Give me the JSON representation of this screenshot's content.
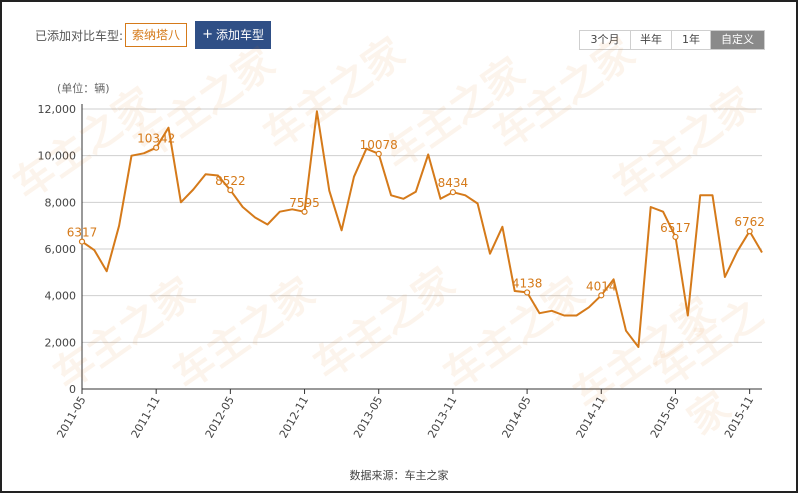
{
  "compare": {
    "label": "已添加对比车型:",
    "selected_model": "索纳塔八",
    "add_button": "添加车型"
  },
  "range_tabs": [
    {
      "label": "3个月",
      "active": false
    },
    {
      "label": "半年",
      "active": false
    },
    {
      "label": "1年",
      "active": false
    },
    {
      "label": "自定义",
      "active": true
    }
  ],
  "unit_label": "(单位：辆)",
  "source": "数据来源：车主之家",
  "watermark": "车主之家",
  "colors": {
    "line": "#d57a1a",
    "grid": "#cfcfcf",
    "axis": "#333333"
  },
  "chart_data": {
    "type": "line",
    "x": [
      "2011-05",
      "2011-06",
      "2011-07",
      "2011-08",
      "2011-09",
      "2011-10",
      "2011-11",
      "2011-12",
      "2012-01",
      "2012-02",
      "2012-03",
      "2012-04",
      "2012-05",
      "2012-06",
      "2012-07",
      "2012-08",
      "2012-09",
      "2012-10",
      "2012-11",
      "2012-12",
      "2013-01",
      "2013-02",
      "2013-03",
      "2013-04",
      "2013-05",
      "2013-06",
      "2013-07",
      "2013-08",
      "2013-09",
      "2013-10",
      "2013-11",
      "2013-12",
      "2014-01",
      "2014-02",
      "2014-03",
      "2014-04",
      "2014-05",
      "2014-06",
      "2014-07",
      "2014-08",
      "2014-09",
      "2014-10",
      "2014-11",
      "2014-12",
      "2015-01",
      "2015-02",
      "2015-03",
      "2015-04",
      "2015-05",
      "2015-06",
      "2015-07",
      "2015-08",
      "2015-09",
      "2015-10",
      "2015-11",
      "2015-12"
    ],
    "values": [
      6317,
      5950,
      5050,
      7000,
      10000,
      10100,
      10342,
      11200,
      8000,
      8550,
      9200,
      9150,
      8522,
      7800,
      7350,
      7050,
      7600,
      7700,
      7595,
      11900,
      8500,
      6800,
      9100,
      10300,
      10078,
      8300,
      8150,
      8450,
      10050,
      8150,
      8434,
      8300,
      7950,
      5800,
      6950,
      4200,
      4138,
      3250,
      3350,
      3150,
      3150,
      3500,
      4014,
      4700,
      2500,
      1800,
      7800,
      7600,
      6517,
      3150,
      8300,
      8300,
      4800,
      5900,
      6762,
      5850
    ],
    "series": [
      {
        "values_ref": "values"
      }
    ],
    "point_labels": [
      {
        "x": "2011-05",
        "value": 6317,
        "label": "6317"
      },
      {
        "x": "2011-11",
        "value": 10342,
        "label": "10342"
      },
      {
        "x": "2012-05",
        "value": 8522,
        "label": "8522"
      },
      {
        "x": "2012-11",
        "value": 7595,
        "label": "7595"
      },
      {
        "x": "2013-05",
        "value": 10078,
        "label": "10078"
      },
      {
        "x": "2013-11",
        "value": 8434,
        "label": "8434"
      },
      {
        "x": "2014-05",
        "value": 4138,
        "label": "4138"
      },
      {
        "x": "2014-11",
        "value": 4014,
        "label": "4014"
      },
      {
        "x": "2015-05",
        "value": 6517,
        "label": "6517"
      },
      {
        "x": "2015-11",
        "value": 6762,
        "label": "6762"
      }
    ],
    "x_ticks": [
      "2011-05",
      "2011-11",
      "2012-05",
      "2012-11",
      "2013-05",
      "2013-11",
      "2014-05",
      "2014-11",
      "2015-05",
      "2015-11"
    ],
    "y_ticks": [
      0,
      2000,
      4000,
      6000,
      8000,
      10000,
      12000
    ],
    "y_tick_labels": [
      "0",
      "2,000",
      "4,000",
      "6,000",
      "8,000",
      "10,000",
      "12,000"
    ],
    "ylim": [
      0,
      12000
    ],
    "grid": true,
    "legend": "none",
    "title": "",
    "xlabel": "",
    "ylabel": ""
  }
}
